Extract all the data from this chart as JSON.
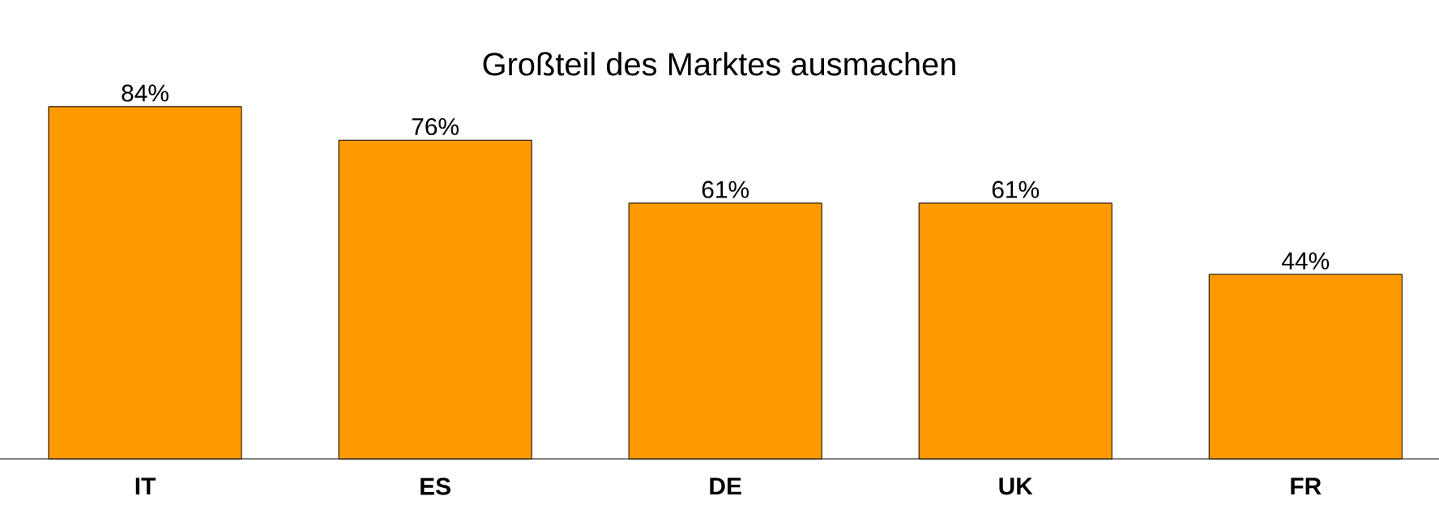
{
  "chart_data": {
    "type": "bar",
    "title": "Großteil des Marktes ausmachen",
    "categories": [
      "IT",
      "ES",
      "DE",
      "UK",
      "FR"
    ],
    "values": [
      84,
      76,
      61,
      61,
      44
    ],
    "value_labels": [
      "84%",
      "76%",
      "61%",
      "61%",
      "44%"
    ],
    "color": "#ff9900"
  }
}
